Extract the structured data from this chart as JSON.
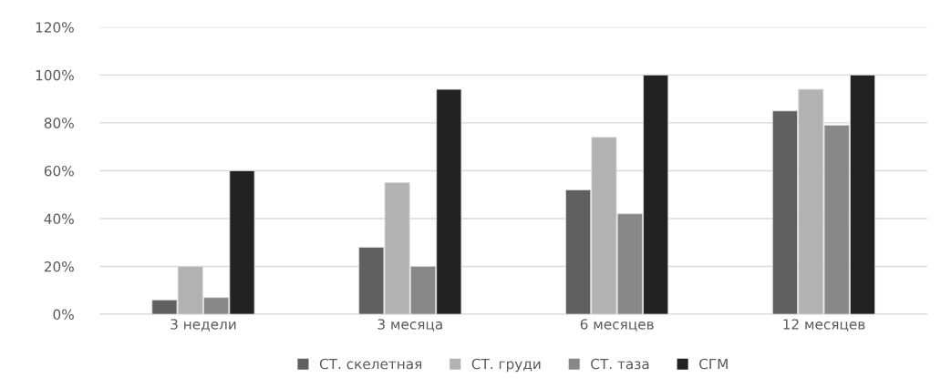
{
  "chart_data": {
    "type": "bar",
    "categories": [
      "3 недели",
      "3 месяца",
      "6 месяцев",
      "12 месяцев"
    ],
    "series": [
      {
        "name": "СТ. скелетная",
        "color": "#606060",
        "values": [
          6,
          28,
          52,
          85
        ]
      },
      {
        "name": "СТ. груди",
        "color": "#b2b2b2",
        "values": [
          20,
          55,
          74,
          94
        ]
      },
      {
        "name": "СТ. таза",
        "color": "#888888",
        "values": [
          7,
          20,
          42,
          79
        ]
      },
      {
        "name": "СГМ",
        "color": "#222222",
        "values": [
          60,
          94,
          100,
          100
        ]
      }
    ],
    "ylim": [
      0,
      120
    ],
    "yticks": [
      {
        "value": 0,
        "label": "0%"
      },
      {
        "value": 20,
        "label": "20%"
      },
      {
        "value": 40,
        "label": "40%"
      },
      {
        "value": 60,
        "label": "60%"
      },
      {
        "value": 80,
        "label": "80%"
      },
      {
        "value": 100,
        "label": "100%"
      },
      {
        "value": 120,
        "label": "120%"
      }
    ],
    "grid": "y",
    "legend": "bottom"
  }
}
